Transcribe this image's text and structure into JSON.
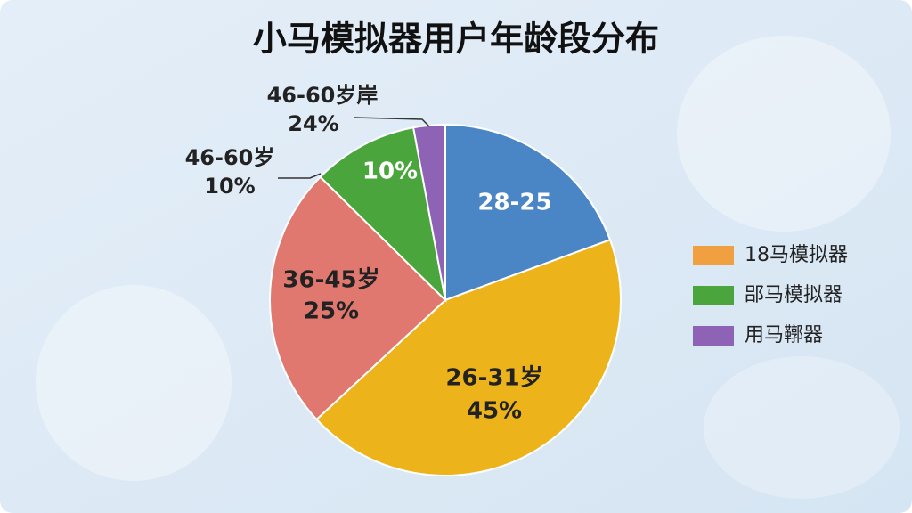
{
  "chart_data": {
    "type": "pie",
    "title": "小马模拟器用户年龄段分布",
    "categories": [
      "28-25",
      "26-31岁",
      "36-45岁",
      "46-60岁",
      "46-60岁岸"
    ],
    "values": [
      20,
      45,
      25,
      10,
      3
    ],
    "value_labels": [
      null,
      "45%",
      "25%",
      "10%",
      null
    ],
    "colors": [
      "#4a86c5",
      "#ecb31a",
      "#e07870",
      "#4aa63c",
      "#8e62b5"
    ],
    "annotations": [
      {
        "text": "24%"
      }
    ],
    "legend": [
      {
        "name": "18马模拟器",
        "color": "#f0a040"
      },
      {
        "name": "郘马模拟器",
        "color": "#4aa63c"
      },
      {
        "name": "用马鞹器",
        "color": "#8e62b5"
      }
    ]
  }
}
